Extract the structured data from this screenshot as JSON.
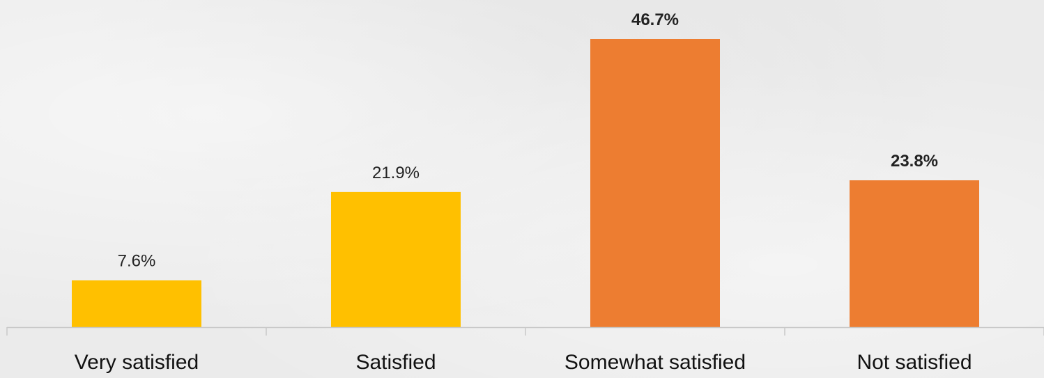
{
  "chart_data": {
    "type": "bar",
    "categories": [
      "Very satisfied",
      "Satisfied",
      "Somewhat satisfied",
      "Not satisfied"
    ],
    "values": [
      7.6,
      21.9,
      46.7,
      23.8
    ],
    "data_labels": [
      "7.6%",
      "21.9%",
      "46.7%",
      "23.8%"
    ],
    "bold_labels": [
      false,
      false,
      true,
      true
    ],
    "colors": [
      "#FFC000",
      "#FFC000",
      "#ED7D31",
      "#ED7D31"
    ],
    "title": "",
    "xlabel": "",
    "ylabel": "",
    "ylim": [
      0,
      50
    ],
    "grid": false,
    "legend": "none"
  }
}
